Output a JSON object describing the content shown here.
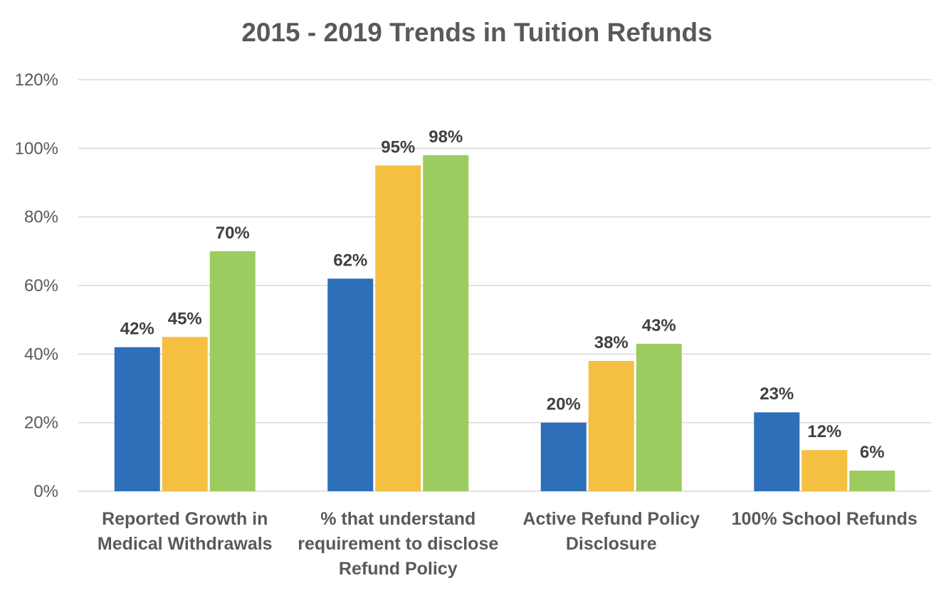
{
  "chart_data": {
    "type": "bar",
    "title": "2015 - 2019 Trends in Tuition Refunds",
    "xlabel": "",
    "ylabel": "",
    "ylim": [
      0,
      120
    ],
    "yticks": [
      0,
      20,
      40,
      60,
      80,
      100,
      120
    ],
    "ytick_labels": [
      "0%",
      "20%",
      "40%",
      "60%",
      "80%",
      "100%",
      "120%"
    ],
    "value_suffix": "%",
    "grid": true,
    "legend": "none",
    "categories": [
      [
        "Reported Growth in",
        "Medical Withdrawals"
      ],
      [
        "% that understand",
        "requirement to disclose",
        "Refund Policy"
      ],
      [
        "Active Refund Policy",
        "Disclosure"
      ],
      [
        "100% School Refunds"
      ]
    ],
    "series": [
      {
        "color": "#2e6fba",
        "values": [
          42,
          62,
          20,
          23
        ]
      },
      {
        "color": "#f5bf42",
        "values": [
          45,
          95,
          38,
          12
        ]
      },
      {
        "color": "#9ccb5f",
        "values": [
          70,
          98,
          43,
          6
        ]
      }
    ]
  }
}
